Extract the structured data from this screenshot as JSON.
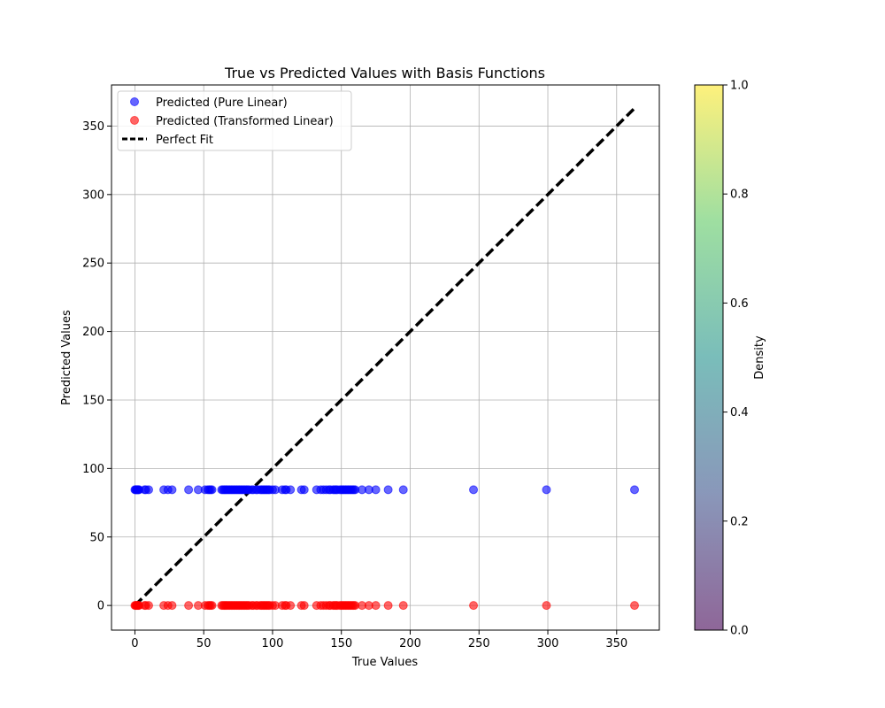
{
  "chart_data": {
    "type": "scatter",
    "title": "True vs Predicted Values with Basis Functions",
    "xlabel": "True Values",
    "ylabel": "Predicted Values",
    "xlim": [
      -17,
      381
    ],
    "ylim": [
      -18,
      380
    ],
    "xticks": [
      0,
      50,
      100,
      150,
      200,
      250,
      300,
      350
    ],
    "yticks": [
      0,
      50,
      100,
      150,
      200,
      250,
      300,
      350
    ],
    "grid": true,
    "legend_position": "top-left",
    "x": [
      0,
      0.5,
      1,
      1.5,
      2,
      2.5,
      3,
      7,
      8,
      10,
      21,
      24,
      27,
      39,
      46,
      51,
      53,
      54,
      55,
      56,
      63,
      64,
      65,
      66,
      67,
      68,
      69,
      70,
      71,
      72,
      73,
      74,
      75,
      76,
      77,
      78,
      79,
      80,
      81,
      82,
      83,
      85,
      86,
      88,
      89,
      91,
      92,
      93,
      94,
      95,
      96,
      97,
      98,
      100,
      102,
      107,
      109,
      110,
      113,
      121,
      123,
      132,
      135,
      137,
      139,
      141,
      142,
      144,
      145,
      146,
      147,
      149,
      150,
      151,
      152,
      153,
      154,
      155,
      156,
      157,
      158,
      159,
      160,
      165,
      170,
      175,
      184,
      195,
      246,
      299,
      363
    ],
    "series": [
      {
        "name": "Predicted (Pure Linear)",
        "color": "#0000ff",
        "constant_y": 84.5
      },
      {
        "name": "Predicted (Transformed Linear)",
        "color": "#ff0000",
        "constant_y": 0
      },
      {
        "name": "Perfect Fit",
        "color": "#000000",
        "style": "dashed",
        "line_x": [
          0,
          363
        ],
        "line_y": [
          0,
          363
        ]
      }
    ],
    "colorbar": {
      "label": "Density",
      "range": [
        0,
        1
      ],
      "ticks": [
        "0.0",
        "0.2",
        "0.4",
        "0.6",
        "0.8",
        "1.0"
      ],
      "colormap": [
        "#440154",
        "#3b528b",
        "#21918c",
        "#5ec962",
        "#fde725"
      ],
      "alpha": 0.6
    }
  }
}
